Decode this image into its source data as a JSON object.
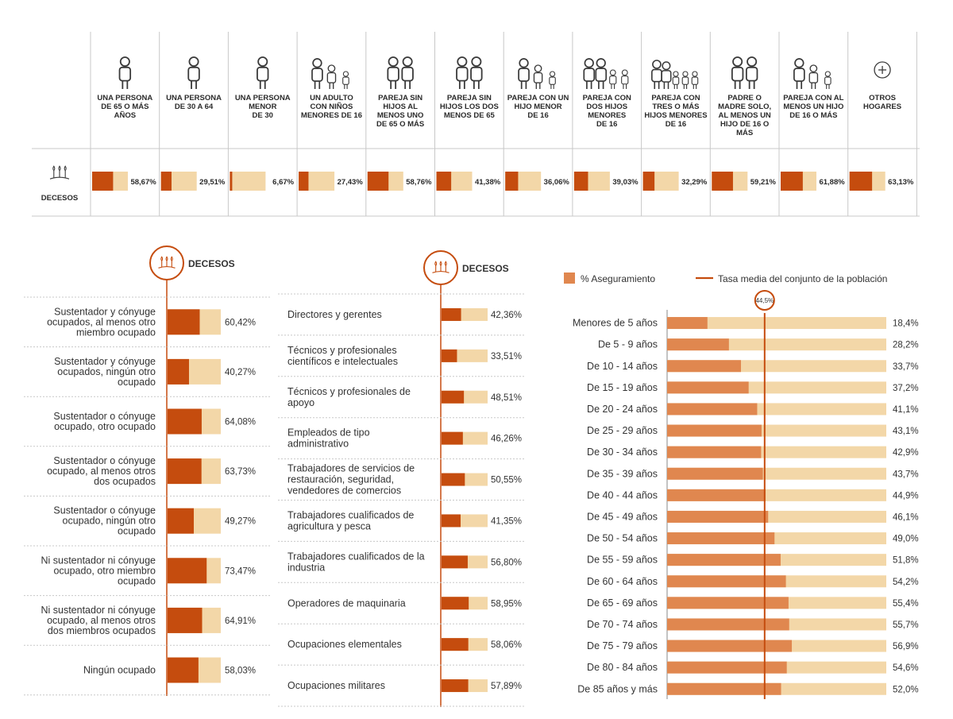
{
  "colors": {
    "dark": "#c54c0e",
    "light": "#f3d7a8",
    "orange": "#e0874f",
    "line": "#c54c0e",
    "icon": "#3a3a3a",
    "rule": "#c8c8c8"
  },
  "top_panel": {
    "row_label": "DECESOS",
    "households": [
      {
        "label_lines": [
          "UNA PERSONA",
          "DE 65 O MÁS",
          "AÑOS"
        ],
        "value_text": "58,67%",
        "icon": "elderly-person-icon"
      },
      {
        "label_lines": [
          "UNA PERSONA",
          "DE 30 A 64"
        ],
        "value_text": "29,51%",
        "icon": "adult-person-icon"
      },
      {
        "label_lines": [
          "UNA PERSONA",
          "MENOR",
          "DE 30"
        ],
        "value_text": "6,67%",
        "icon": "young-person-icon"
      },
      {
        "label_lines": [
          "UN ADULTO",
          "CON NIÑOS",
          "MENORES DE 16"
        ],
        "value_text": "27,43%",
        "icon": "adult-with-children-icon"
      },
      {
        "label_lines": [
          "PAREJA SIN",
          "HIJOS AL",
          "MENOS UNO",
          "DE 65 O MÁS"
        ],
        "value_text": "58,76%",
        "icon": "elderly-couple-icon"
      },
      {
        "label_lines": [
          "PAREJA SIN",
          "HIJOS LOS DOS",
          "MENOS DE 65"
        ],
        "value_text": "41,38%",
        "icon": "couple-icon"
      },
      {
        "label_lines": [
          "PAREJA CON UN",
          "HIJO MENOR",
          "DE 16"
        ],
        "value_text": "36,06%",
        "icon": "couple-one-child-icon"
      },
      {
        "label_lines": [
          "PAREJA CON",
          "DOS HIJOS",
          "MENORES",
          "DE 16"
        ],
        "value_text": "39,03%",
        "icon": "couple-two-children-icon"
      },
      {
        "label_lines": [
          "PAREJA CON",
          "TRES O MÁS",
          "HIJOS MENORES",
          "DE 16"
        ],
        "value_text": "32,29%",
        "icon": "couple-three-children-icon"
      },
      {
        "label_lines": [
          "PADRE O",
          "MADRE SOLO,",
          "AL MENOS UN",
          "HIJO DE 16 O",
          "MÁS"
        ],
        "value_text": "59,21%",
        "icon": "single-parent-icon"
      },
      {
        "label_lines": [
          "PAREJA CON AL",
          "MENOS UN HIJO",
          "DE 16 O MÁS"
        ],
        "value_text": "61,88%",
        "icon": "couple-adult-child-icon"
      },
      {
        "label_lines": [
          "OTROS",
          "HOGARES"
        ],
        "value_text": "63,13%",
        "icon": "plus-circle-icon"
      }
    ]
  },
  "employment_panel": {
    "header": "DECESOS",
    "rows": [
      {
        "label_lines": [
          "Sustentador y cónyuge",
          "ocupados, al menos otro",
          "miembro ocupado"
        ],
        "value_text": "60,42%"
      },
      {
        "label_lines": [
          "Sustentador y cónyuge",
          "ocupados, ningún otro",
          "ocupado"
        ],
        "value_text": "40,27%"
      },
      {
        "label_lines": [
          "Sustentador o cónyuge",
          "ocupado, otro ocupado"
        ],
        "value_text": "64,08%"
      },
      {
        "label_lines": [
          "Sustentador o cónyuge",
          "ocupado, al menos otros",
          "dos ocupados"
        ],
        "value_text": "63,73%"
      },
      {
        "label_lines": [
          "Sustentador o cónyuge",
          "ocupado, ningún otro",
          "ocupado"
        ],
        "value_text": "49,27%"
      },
      {
        "label_lines": [
          "Ni sustentador ni cónyuge",
          "ocupado, otro miembro",
          "ocupado"
        ],
        "value_text": "73,47%"
      },
      {
        "label_lines": [
          "Ni sustentador ni cónyuge",
          "ocupado, al menos otros",
          "dos miembros ocupados"
        ],
        "value_text": "64,91%"
      },
      {
        "label_lines": [
          "Ningún ocupado"
        ],
        "value_text": "58,03%"
      }
    ]
  },
  "occupation_panel": {
    "header": "DECESOS",
    "rows": [
      {
        "label_lines": [
          "Directores y gerentes"
        ],
        "value_text": "42,36%"
      },
      {
        "label_lines": [
          "Técnicos y profesionales",
          "científicos e intelectuales"
        ],
        "value_text": "33,51%"
      },
      {
        "label_lines": [
          "Técnicos y profesionales de",
          "apoyo"
        ],
        "value_text": "48,51%"
      },
      {
        "label_lines": [
          "Empleados de tipo",
          "administrativo"
        ],
        "value_text": "46,26%"
      },
      {
        "label_lines": [
          "Trabajadores de servicios de",
          "restauración, seguridad,",
          "vendedores de comercios"
        ],
        "value_text": "50,55%"
      },
      {
        "label_lines": [
          "Trabajadores cualificados de",
          "agricultura y pesca"
        ],
        "value_text": "41,35%"
      },
      {
        "label_lines": [
          "Trabajadores cualificados de la",
          "industria"
        ],
        "value_text": "56,80%"
      },
      {
        "label_lines": [
          "Operadores de maquinaria"
        ],
        "value_text": "58,95%"
      },
      {
        "label_lines": [
          "Ocupaciones elementales"
        ],
        "value_text": "58,06%"
      },
      {
        "label_lines": [
          "Ocupaciones militares"
        ],
        "value_text": "57,89%"
      }
    ]
  },
  "age_panel": {
    "legend_bar": "% Aseguramiento",
    "legend_line": "Tasa media del conjunto de la población",
    "mean_value": 44.5,
    "mean_label": "44,5%",
    "value_texts": [
      "18,4%",
      "28,2%",
      "33,7%",
      "37,2%",
      "41,1%",
      "43,1%",
      "42,9%",
      "43,7%",
      "44,9%",
      "46,1%",
      "49,0%",
      "51,8%",
      "54,2%",
      "55,4%",
      "55,7%",
      "56,9%",
      "54,6%",
      "52,0%"
    ]
  },
  "chart_data": [
    {
      "type": "bar",
      "categories": [
        "UNA PERSONA DE 65 O MÁS AÑOS",
        "UNA PERSONA DE 30 A 64",
        "UNA PERSONA MENOR DE 30",
        "UN ADULTO CON NIÑOS MENORES DE 16",
        "PAREJA SIN HIJOS AL MENOS UNO DE 65 O MÁS",
        "PAREJA SIN HIJOS LOS DOS MENOS DE 65",
        "PAREJA CON UN HIJO MENOR DE 16",
        "PAREJA CON DOS HIJOS MENORES DE 16",
        "PAREJA CON TRES O MÁS HIJOS MENORES DE 16",
        "PADRE O MADRE SOLO, AL MENOS UN HIJO DE 16 O MÁS",
        "PAREJA CON AL MENOS UN HIJO DE 16 O MÁS",
        "OTROS HOGARES"
      ],
      "values": [
        58.67,
        29.51,
        6.67,
        27.43,
        58.76,
        41.38,
        36.06,
        39.03,
        32.29,
        59.21,
        61.88,
        63.13
      ],
      "ylim": [
        0,
        100
      ]
    },
    {
      "type": "bar",
      "categories": [
        "Sustentador y cónyuge ocupados, al menos otro miembro ocupado",
        "Sustentador y cónyuge ocupados, ningún otro ocupado",
        "Sustentador o cónyuge ocupado, otro ocupado",
        "Sustentador o cónyuge ocupado, al menos otros dos ocupados",
        "Sustentador o cónyuge ocupado, ningún otro ocupado",
        "Ni sustentador ni cónyuge ocupado, otro miembro ocupado",
        "Ni sustentador ni cónyuge ocupado, al menos otros dos miembros ocupados",
        "Ningún ocupado"
      ],
      "values": [
        60.42,
        40.27,
        64.08,
        63.73,
        49.27,
        73.47,
        64.91,
        58.03
      ],
      "ylim": [
        0,
        100
      ]
    },
    {
      "type": "bar",
      "categories": [
        "Directores y gerentes",
        "Técnicos y profesionales científicos e intelectuales",
        "Técnicos y profesionales de apoyo",
        "Empleados de tipo administrativo",
        "Trabajadores de servicios de restauración, seguridad, vendedores de comercios",
        "Trabajadores cualificados de agricultura y pesca",
        "Trabajadores cualificados de la industria",
        "Operadores de maquinaria",
        "Ocupaciones elementales",
        "Ocupaciones militares"
      ],
      "values": [
        42.36,
        33.51,
        48.51,
        46.26,
        50.55,
        41.35,
        56.8,
        58.95,
        58.06,
        57.89
      ],
      "ylim": [
        0,
        100
      ]
    },
    {
      "type": "bar",
      "categories": [
        "Menores de 5 años",
        "De 5 - 9 años",
        "De 10 - 14 años",
        "De 15 - 19 años",
        "De 20 - 24 años",
        "De 25 - 29 años",
        "De 30 - 34 años",
        "De 35 - 39 años",
        "De 40 - 44 años",
        "De 45 - 49 años",
        "De 50 - 54 años",
        "De 55 - 59 años",
        "De 60 - 64 años",
        "De 65 - 69 años",
        "De 70 - 74 años",
        "De 75 - 79 años",
        "De 80 - 84 años",
        "De 85 años y más"
      ],
      "series": [
        {
          "name": "% Aseguramiento",
          "values": [
            18.4,
            28.2,
            33.7,
            37.2,
            41.1,
            43.1,
            42.9,
            43.7,
            44.9,
            46.1,
            49.0,
            51.8,
            54.2,
            55.4,
            55.7,
            56.9,
            54.6,
            52.0
          ]
        }
      ],
      "reference_line": {
        "name": "Tasa media del conjunto de la población",
        "value": 44.5
      },
      "ylim": [
        0,
        100
      ]
    }
  ]
}
